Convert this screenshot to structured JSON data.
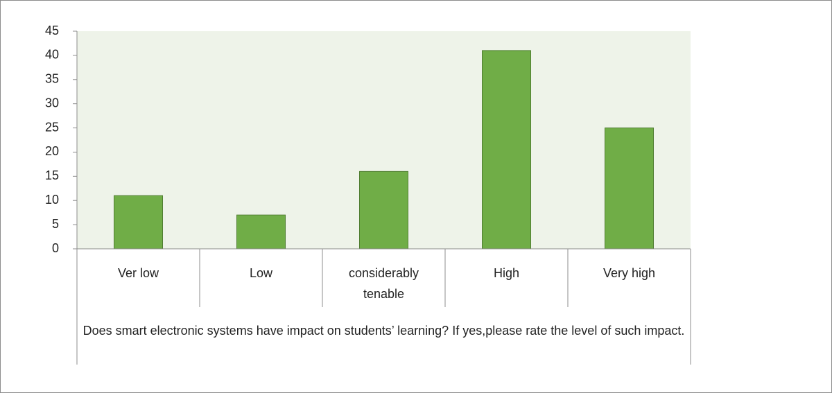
{
  "chart_data": {
    "type": "bar",
    "categories": [
      "Ver low",
      "Low",
      "considerably tenable",
      "High",
      "Very high"
    ],
    "values": [
      11,
      7,
      16,
      41,
      25
    ],
    "xlabel": "Does smart electronic systems have impact on students’ learning? If yes,please rate the level of such impact.",
    "color": "#70ad47",
    "ylim": [
      0,
      45
    ],
    "yticks": [
      0,
      5,
      10,
      15,
      20,
      25,
      30,
      35,
      40,
      45
    ],
    "grid": false
  }
}
